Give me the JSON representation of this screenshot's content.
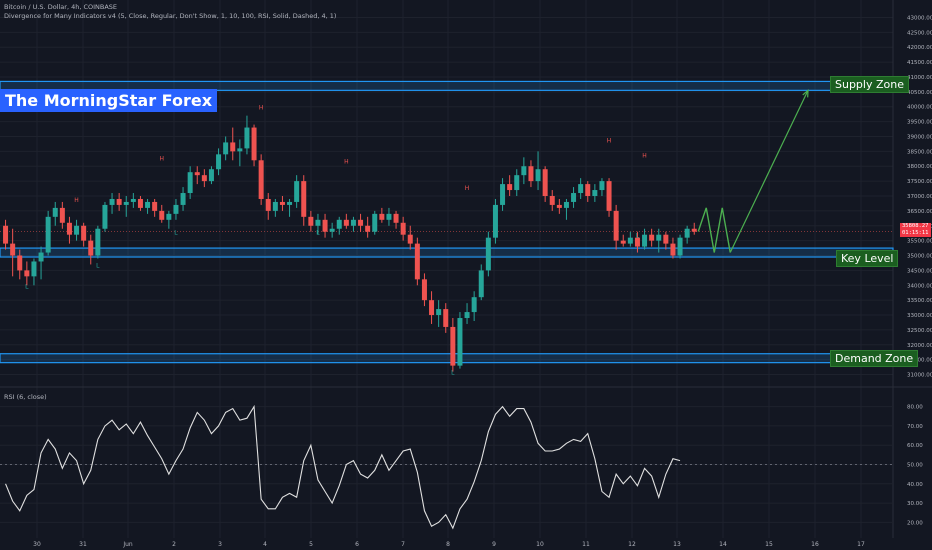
{
  "header": {
    "symbol": "Bitcoin / U.S. Dollar, 4h, COINBASE",
    "indicator": "Divergence for Many Indicators v4 (5, Close, Regular, Don't Show, 1, 10, 100, RSI, Solid, Dashed, 4, 1)"
  },
  "brand": "The MorningStar Forex",
  "zones": {
    "supply": "Supply Zone",
    "key": "Key Level",
    "demand": "Demand Zone"
  },
  "price_tag": {
    "price": "35808.27",
    "countdown": "01:15:11"
  },
  "rsi_label": "RSI (6, close)",
  "colors": {
    "background": "#131722",
    "up": "#26a69a",
    "down": "#ef5350",
    "zone": "#2196f3",
    "projection": "#4caf50",
    "rsi_line": "#e0e0e0"
  },
  "chart_data": [
    {
      "type": "candlestick",
      "title": "Bitcoin / U.S. Dollar, 4h, COINBASE",
      "ylim": [
        30750,
        43250
      ],
      "y_ticks": [
        31000,
        31500,
        32000,
        32500,
        33000,
        33500,
        34000,
        34500,
        35000,
        35500,
        36000,
        36500,
        37000,
        37500,
        38000,
        38500,
        39000,
        39500,
        40000,
        40500,
        41000,
        41500,
        42000,
        42500,
        43000
      ],
      "x_ticks": [
        "30",
        "31",
        "Jun",
        "2",
        "3",
        "4",
        "5",
        "6",
        "7",
        "8",
        "9",
        "10",
        "11",
        "12",
        "13",
        "14",
        "15",
        "16",
        "17"
      ],
      "candles": [
        [
          36000,
          36200,
          35200,
          35400
        ],
        [
          35400,
          35900,
          34300,
          35000
        ],
        [
          35000,
          35200,
          34200,
          34500
        ],
        [
          34500,
          34800,
          34000,
          34300
        ],
        [
          34300,
          34900,
          34000,
          34800
        ],
        [
          34800,
          35300,
          34200,
          35100
        ],
        [
          35100,
          36500,
          35000,
          36300
        ],
        [
          36300,
          36800,
          36000,
          36600
        ],
        [
          36600,
          36800,
          35900,
          36100
        ],
        [
          36100,
          36300,
          35400,
          35700
        ],
        [
          35700,
          36200,
          35500,
          36000
        ],
        [
          36000,
          36100,
          35300,
          35500
        ],
        [
          35500,
          35700,
          34700,
          35000
        ],
        [
          35000,
          36000,
          34900,
          35900
        ],
        [
          35900,
          36800,
          35800,
          36700
        ],
        [
          36700,
          37100,
          36400,
          36900
        ],
        [
          36900,
          37100,
          36500,
          36700
        ],
        [
          36700,
          37000,
          36300,
          36800
        ],
        [
          36800,
          37100,
          36600,
          36900
        ],
        [
          36900,
          37000,
          36500,
          36600
        ],
        [
          36600,
          36900,
          36400,
          36800
        ],
        [
          36800,
          36900,
          36300,
          36500
        ],
        [
          36500,
          36700,
          36100,
          36200
        ],
        [
          36200,
          36500,
          35900,
          36400
        ],
        [
          36400,
          36900,
          36200,
          36700
        ],
        [
          36700,
          37300,
          36500,
          37100
        ],
        [
          37100,
          38000,
          36900,
          37800
        ],
        [
          37800,
          38000,
          37400,
          37700
        ],
        [
          37700,
          37900,
          37300,
          37500
        ],
        [
          37500,
          38000,
          37400,
          37900
        ],
        [
          37900,
          38600,
          37700,
          38400
        ],
        [
          38400,
          39000,
          38200,
          38800
        ],
        [
          38800,
          39300,
          38200,
          38500
        ],
        [
          38500,
          38900,
          38000,
          38600
        ],
        [
          38600,
          39700,
          38400,
          39300
        ],
        [
          39300,
          39400,
          38000,
          38200
        ],
        [
          38200,
          38400,
          36700,
          36900
        ],
        [
          36900,
          37100,
          36200,
          36500
        ],
        [
          36500,
          36900,
          36300,
          36800
        ],
        [
          36800,
          37000,
          36500,
          36700
        ],
        [
          36700,
          36900,
          36300,
          36800
        ],
        [
          36800,
          37700,
          36600,
          37500
        ],
        [
          37500,
          37700,
          36000,
          36300
        ],
        [
          36300,
          36500,
          35800,
          36000
        ],
        [
          36000,
          36400,
          35700,
          36200
        ],
        [
          36200,
          36400,
          35600,
          35800
        ],
        [
          35800,
          36100,
          35600,
          35900
        ],
        [
          35900,
          36300,
          35700,
          36200
        ],
        [
          36200,
          36400,
          35900,
          36000
        ],
        [
          36000,
          36300,
          35800,
          36200
        ],
        [
          36200,
          36400,
          35800,
          36000
        ],
        [
          36000,
          36300,
          35600,
          35800
        ],
        [
          35800,
          36500,
          35700,
          36400
        ],
        [
          36400,
          36600,
          36100,
          36200
        ],
        [
          36200,
          36600,
          36000,
          36400
        ],
        [
          36400,
          36500,
          35900,
          36100
        ],
        [
          36100,
          36300,
          35500,
          35700
        ],
        [
          35700,
          36000,
          35200,
          35400
        ],
        [
          35400,
          35600,
          34000,
          34200
        ],
        [
          34200,
          34400,
          33300,
          33500
        ],
        [
          33500,
          33800,
          32700,
          33000
        ],
        [
          33000,
          33500,
          32600,
          33200
        ],
        [
          33200,
          33400,
          32400,
          32600
        ],
        [
          32600,
          32900,
          31100,
          31300
        ],
        [
          31300,
          33100,
          31200,
          32900
        ],
        [
          32900,
          33400,
          32700,
          33100
        ],
        [
          33100,
          33800,
          32800,
          33600
        ],
        [
          33600,
          34700,
          33500,
          34500
        ],
        [
          34500,
          35800,
          34300,
          35600
        ],
        [
          35600,
          36900,
          35400,
          36700
        ],
        [
          36700,
          37600,
          36500,
          37400
        ],
        [
          37400,
          37700,
          37000,
          37200
        ],
        [
          37200,
          37900,
          37000,
          37700
        ],
        [
          37700,
          38300,
          37400,
          38000
        ],
        [
          38000,
          38200,
          37300,
          37500
        ],
        [
          37500,
          38500,
          37200,
          37900
        ],
        [
          37900,
          38000,
          36800,
          37000
        ],
        [
          37000,
          37200,
          36500,
          36700
        ],
        [
          36700,
          36900,
          36400,
          36600
        ],
        [
          36600,
          36900,
          36200,
          36800
        ],
        [
          36800,
          37300,
          36600,
          37100
        ],
        [
          37100,
          37600,
          36900,
          37400
        ],
        [
          37400,
          37500,
          36800,
          37000
        ],
        [
          37000,
          37400,
          36800,
          37200
        ],
        [
          37200,
          37600,
          37000,
          37500
        ],
        [
          37500,
          37600,
          36300,
          36500
        ],
        [
          36500,
          36700,
          35200,
          35500
        ],
        [
          35500,
          35700,
          35300,
          35400
        ],
        [
          35400,
          35800,
          35300,
          35600
        ],
        [
          35600,
          35800,
          35100,
          35300
        ],
        [
          35300,
          35900,
          35200,
          35700
        ],
        [
          35700,
          35900,
          35300,
          35500
        ],
        [
          35500,
          35900,
          35100,
          35700
        ],
        [
          35700,
          35800,
          35200,
          35400
        ],
        [
          35400,
          35600,
          34900,
          35000
        ],
        [
          35000,
          35700,
          34900,
          35600
        ],
        [
          35600,
          36000,
          35400,
          35900
        ],
        [
          35900,
          36100,
          35700,
          35800
        ]
      ],
      "hl_markers": {
        "H": [
          [
            10,
            36800
          ],
          [
            22,
            38200
          ],
          [
            36,
            39900
          ],
          [
            48,
            38100
          ],
          [
            65,
            37200
          ],
          [
            85,
            38800
          ],
          [
            90,
            38300
          ]
        ],
        "L": [
          [
            3,
            33900
          ],
          [
            13,
            34600
          ],
          [
            24,
            35700
          ],
          [
            44,
            35700
          ],
          [
            63,
            31000
          ],
          [
            89,
            35600
          ]
        ]
      },
      "zones": [
        {
          "name": "Supply Zone",
          "from": 40550,
          "to": 40850
        },
        {
          "name": "Key Level",
          "from": 34950,
          "to": 35250
        },
        {
          "name": "Demand Zone",
          "from": 31400,
          "to": 31700
        }
      ],
      "zigzag_projection": [
        35808,
        36600,
        35100,
        36600,
        35100
      ],
      "projection_target": 40550
    },
    {
      "type": "line",
      "title": "RSI (6, close)",
      "ylim": [
        15,
        85
      ],
      "y_ticks": [
        20,
        30,
        40,
        50,
        60,
        70,
        80
      ],
      "midline": 50,
      "values": [
        40,
        31,
        26,
        34,
        37,
        56,
        63,
        58,
        48,
        56,
        52,
        40,
        47,
        63,
        70,
        73,
        68,
        71,
        66,
        72,
        65,
        59,
        53,
        45,
        52,
        58,
        69,
        77,
        73,
        66,
        70,
        77,
        79,
        73,
        74,
        80,
        32,
        27,
        27,
        33,
        35,
        33,
        52,
        60,
        42,
        36,
        30,
        39,
        50,
        52,
        45,
        43,
        47,
        55,
        47,
        52,
        57,
        58,
        46,
        26,
        18,
        20,
        24,
        17,
        27,
        32,
        41,
        52,
        67,
        76,
        80,
        75,
        79,
        79,
        72,
        61,
        57,
        57,
        58,
        61,
        63,
        62,
        66,
        53,
        36,
        33,
        45,
        40,
        44,
        39,
        48,
        44,
        33,
        45,
        53,
        52
      ]
    }
  ]
}
